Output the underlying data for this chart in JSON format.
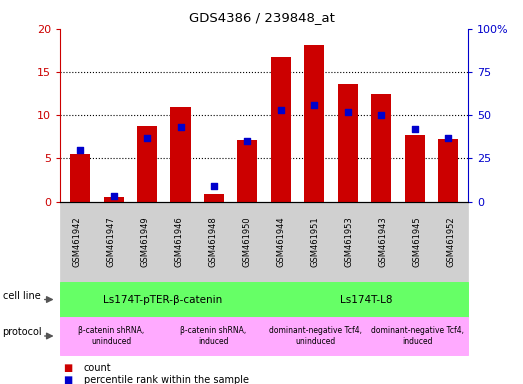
{
  "title": "GDS4386 / 239848_at",
  "samples": [
    "GSM461942",
    "GSM461947",
    "GSM461949",
    "GSM461946",
    "GSM461948",
    "GSM461950",
    "GSM461944",
    "GSM461951",
    "GSM461953",
    "GSM461943",
    "GSM461945",
    "GSM461952"
  ],
  "count_values": [
    5.5,
    0.5,
    8.8,
    10.9,
    0.9,
    7.1,
    16.7,
    18.1,
    13.6,
    12.4,
    7.7,
    7.3
  ],
  "percentile_values": [
    30,
    3,
    37,
    43,
    9,
    35,
    53,
    56,
    52,
    50,
    42,
    37
  ],
  "ylim_left": [
    0,
    20
  ],
  "ylim_right": [
    0,
    100
  ],
  "yticks_left": [
    0,
    5,
    10,
    15,
    20
  ],
  "yticks_right": [
    0,
    25,
    50,
    75,
    100
  ],
  "ytick_labels_left": [
    "0",
    "5",
    "10",
    "15",
    "20"
  ],
  "ytick_labels_right": [
    "0",
    "25",
    "50",
    "75",
    "100%"
  ],
  "bar_color": "#cc0000",
  "dot_color": "#0000cc",
  "cell_line_groups": [
    {
      "label": "Ls174T-pTER-β-catenin",
      "start": 0,
      "end": 6,
      "color": "#66ff66"
    },
    {
      "label": "Ls174T-L8",
      "start": 6,
      "end": 12,
      "color": "#66ff66"
    }
  ],
  "protocol_groups": [
    {
      "label": "β-catenin shRNA,\nuninduced",
      "start": 0,
      "end": 3,
      "color": "#ffaaff"
    },
    {
      "label": "β-catenin shRNA,\ninduced",
      "start": 3,
      "end": 6,
      "color": "#ffaaff"
    },
    {
      "label": "dominant-negative Tcf4,\nuninduced",
      "start": 6,
      "end": 9,
      "color": "#ffaaff"
    },
    {
      "label": "dominant-negative Tcf4,\ninduced",
      "start": 9,
      "end": 12,
      "color": "#ffaaff"
    }
  ],
  "legend_count_label": "count",
  "legend_percentile_label": "percentile rank within the sample",
  "cell_line_label": "cell line",
  "protocol_label": "protocol",
  "bar_color_red": "#cc0000",
  "dot_color_blue": "#0000cc",
  "tick_bg_color": "#d0d0d0",
  "tick_border_color": "#888888"
}
